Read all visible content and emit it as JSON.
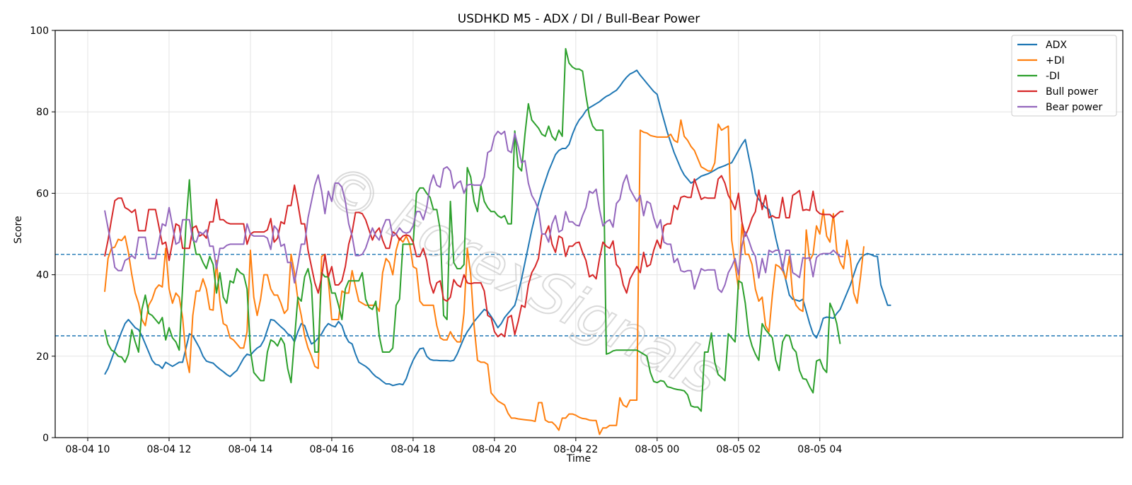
{
  "watermark": "© ForexSignals",
  "chart_data": {
    "type": "line",
    "title": "USDHKD M5 - ADX / DI / Bull-Bear Power",
    "xlabel": "Time",
    "ylabel": "Score",
    "ylim": [
      0,
      100
    ],
    "x_start": "08-04 10:25",
    "x_step_minutes": 5,
    "xticks": [
      "08-04 10",
      "08-04 12",
      "08-04 14",
      "08-04 16",
      "08-04 18",
      "08-04 20",
      "08-04 22",
      "08-05 00",
      "08-05 02",
      "08-05 04"
    ],
    "yticks": [
      "0",
      "20",
      "40",
      "60",
      "80",
      "100"
    ],
    "grid": true,
    "legend_position": "top-right",
    "reference_lines": [
      {
        "y": 45,
        "style": "dashed",
        "color": "#1f77b4"
      },
      {
        "y": 25,
        "style": "dashed",
        "color": "#1f77b4"
      }
    ],
    "series": [
      {
        "name": "ADX",
        "color": "#1f77b4",
        "values": [
          15.5,
          17.0,
          19.2,
          21.5,
          23.8,
          26.0,
          28.0,
          29.0,
          28.0,
          27.0,
          26.5,
          25.0,
          23.0,
          21.0,
          19.0,
          18.0,
          17.8,
          17.0,
          18.5,
          18.0,
          17.5,
          18.0,
          18.5,
          18.5,
          22.0,
          25.5,
          25.0,
          23.5,
          22.0,
          20.0,
          18.8,
          18.5,
          18.3,
          17.5,
          16.8,
          16.2,
          15.5,
          15.0,
          15.8,
          16.5,
          18.0,
          19.5,
          20.5,
          20.2,
          21.2,
          22.0,
          22.5,
          24.0,
          26.5,
          29.0,
          28.8,
          28.0,
          27.2,
          26.5,
          25.5,
          25.0,
          23.5,
          26.0,
          28.0,
          27.5,
          25.0,
          23.0,
          23.5,
          24.5,
          25.5,
          27.0,
          28.0,
          27.5,
          27.2,
          28.5,
          27.5,
          25.0,
          23.5,
          23.0,
          20.5,
          18.5,
          18.0,
          17.5,
          16.8,
          15.8,
          15.0,
          14.5,
          13.8,
          13.2,
          13.2,
          12.8,
          13.0,
          13.2,
          13.0,
          14.5,
          17.0,
          19.0,
          20.5,
          21.8,
          22.0,
          20.0,
          19.2,
          19.0,
          19.0,
          18.9,
          18.9,
          18.9,
          18.8,
          19.0,
          20.5,
          22.5,
          24.5,
          26.0,
          27.2,
          28.5,
          29.5,
          30.5,
          31.5,
          31.0,
          29.8,
          28.5,
          27.0,
          28.0,
          29.5,
          30.5,
          31.5,
          32.5,
          35.5,
          39.0,
          43.0,
          47.0,
          51.0,
          54.5,
          57.5,
          60.5,
          63.0,
          65.5,
          67.5,
          69.5,
          70.5,
          71.0,
          71.0,
          72.0,
          74.5,
          76.5,
          78.0,
          79.0,
          80.3,
          81.0,
          81.5,
          82.0,
          82.5,
          83.2,
          83.8,
          84.2,
          84.8,
          85.3,
          86.3,
          87.5,
          88.5,
          89.3,
          89.7,
          90.2,
          89.0,
          88.0,
          87.0,
          86.0,
          85.0,
          84.3,
          81.0,
          78.0,
          75.0,
          72.5,
          70.0,
          68.0,
          66.0,
          64.5,
          63.5,
          62.5,
          63.0,
          63.6,
          64.2,
          64.5,
          64.8,
          65.2,
          65.7,
          66.2,
          66.5,
          66.8,
          67.2,
          67.5,
          69.0,
          70.5,
          72.0,
          73.2,
          69.0,
          65.0,
          60.0,
          58.5,
          57.5,
          56.5,
          56.0,
          53.0,
          49.0,
          45.5,
          42.0,
          38.5,
          35.0,
          34.0,
          33.8,
          33.5,
          34.0,
          31.0,
          28.0,
          25.5,
          24.5,
          26.5,
          29.3,
          29.6,
          29.5,
          29.3,
          30.5,
          31.5,
          33.5,
          35.5,
          37.5,
          40.0,
          42.5,
          44.0,
          44.8,
          45.2,
          45.0,
          44.6,
          44.5,
          37.5,
          35.0,
          32.5,
          32.5
        ]
      },
      {
        "name": "+DI",
        "color": "#ff7f0e",
        "values": [
          35.8,
          44.0,
          46.5,
          46.8,
          48.7,
          48.4,
          49.5,
          45.5,
          40.0,
          35.5,
          33.0,
          29.0,
          27.5,
          32.5,
          34.0,
          36.5,
          37.5,
          37.0,
          46.5,
          36.5,
          33.0,
          35.5,
          34.5,
          29.5,
          20.0,
          16.0,
          30.0,
          36.0,
          36.0,
          39.0,
          36.5,
          31.5,
          31.3,
          43.5,
          33.5,
          28.0,
          27.5,
          24.5,
          24.0,
          23.0,
          22.0,
          22.0,
          26.0,
          46.0,
          34.5,
          30.0,
          34.0,
          40.0,
          40.0,
          36.5,
          35.0,
          35.0,
          33.0,
          30.5,
          31.5,
          45.0,
          40.5,
          34.0,
          30.0,
          25.0,
          22.0,
          20.0,
          17.5,
          17.0,
          44.5,
          45.0,
          38.5,
          29.0,
          29.0,
          29.0,
          36.0,
          35.5,
          35.5,
          41.0,
          37.0,
          33.5,
          33.0,
          32.5,
          32.5,
          32.5,
          32.5,
          31.0,
          40.5,
          44.0,
          43.0,
          40.0,
          46.0,
          49.0,
          48.0,
          49.5,
          47.5,
          42.0,
          41.5,
          33.5,
          32.5,
          32.5,
          32.5,
          32.5,
          27.5,
          24.5,
          24.0,
          24.0,
          26.0,
          24.5,
          23.5,
          23.5,
          30.5,
          46.5,
          40.0,
          27.5,
          19.0,
          18.5,
          18.5,
          18.0,
          11.0,
          10.0,
          9.0,
          8.5,
          8.0,
          6.0,
          4.8,
          4.8,
          4.6,
          4.5,
          4.4,
          4.3,
          4.2,
          4.0,
          8.6,
          8.6,
          4.3,
          3.8,
          3.8,
          3.0,
          1.8,
          4.8,
          4.8,
          5.8,
          5.8,
          5.5,
          5.0,
          4.7,
          4.6,
          4.3,
          4.2,
          4.2,
          0.8,
          2.4,
          2.4,
          3.0,
          3.0,
          3.0,
          9.8,
          8.0,
          7.5,
          9.2,
          9.2,
          9.2,
          75.5,
          75.0,
          74.8,
          74.2,
          74.0,
          73.8,
          73.8,
          73.8,
          73.8,
          74.5,
          73.0,
          72.5,
          78.0,
          74.0,
          73.0,
          71.5,
          70.5,
          68.5,
          66.5,
          66.0,
          65.5,
          65.5,
          67.5,
          77.0,
          75.5,
          76.0,
          76.5,
          48.5,
          42.5,
          36.5,
          52.5,
          45.0,
          45.0,
          42.5,
          36.5,
          33.5,
          34.5,
          27.5,
          26.0,
          35.0,
          42.5,
          42.0,
          41.0,
          39.0,
          44.5,
          35.0,
          32.5,
          31.5,
          31.0,
          51.0,
          43.5,
          45.0,
          52.0,
          50.0,
          56.0,
          49.5,
          48.0,
          55.0,
          46.0,
          43.0,
          41.5,
          48.5,
          44.0,
          35.5,
          33.0,
          39.5,
          47.0
        ]
      },
      {
        "name": "-DI",
        "color": "#2ca02c",
        "values": [
          26.5,
          23.0,
          21.5,
          21.0,
          20.0,
          19.8,
          18.5,
          20.5,
          26.5,
          23.5,
          21.0,
          31.5,
          35.0,
          30.5,
          30.0,
          29.0,
          28.0,
          29.5,
          24.0,
          27.0,
          24.5,
          23.5,
          21.5,
          37.0,
          52.5,
          63.3,
          49.5,
          45.0,
          45.0,
          43.0,
          41.5,
          44.5,
          42.5,
          35.5,
          40.5,
          34.5,
          33.0,
          38.5,
          38.0,
          41.5,
          40.5,
          40.0,
          36.5,
          21.5,
          16.0,
          15.0,
          14.0,
          14.0,
          21.0,
          24.0,
          23.5,
          22.5,
          24.5,
          23.0,
          17.0,
          13.5,
          24.0,
          34.5,
          33.5,
          39.5,
          41.5,
          37.5,
          21.0,
          21.0,
          40.5,
          39.5,
          39.5,
          35.5,
          35.5,
          32.5,
          29.0,
          36.5,
          38.5,
          38.5,
          38.5,
          38.5,
          40.5,
          34.0,
          32.0,
          31.5,
          33.5,
          25.0,
          21.0,
          21.0,
          21.0,
          22.0,
          32.5,
          34.0,
          47.5,
          47.5,
          47.5,
          47.5,
          60.0,
          61.3,
          61.3,
          60.0,
          59.0,
          56.0,
          56.0,
          51.0,
          30.0,
          29.0,
          58.0,
          43.0,
          41.5,
          41.5,
          42.5,
          66.3,
          64.0,
          58.0,
          55.5,
          62.0,
          58.0,
          56.5,
          55.5,
          55.5,
          54.5,
          54.0,
          54.5,
          52.5,
          52.5,
          75.3,
          66.5,
          65.5,
          74.5,
          82.0,
          78.0,
          77.0,
          76.0,
          74.5,
          74.0,
          76.5,
          74.0,
          73.0,
          75.5,
          74.0,
          95.5,
          92.0,
          91.0,
          90.5,
          90.5,
          90.0,
          84.0,
          79.0,
          76.5,
          75.5,
          75.5,
          75.5,
          20.5,
          20.8,
          21.3,
          21.5,
          21.5,
          21.5,
          21.5,
          21.5,
          21.5,
          21.5,
          21.0,
          20.5,
          20.0,
          16.0,
          13.8,
          13.5,
          14.0,
          13.8,
          12.5,
          12.3,
          12.0,
          11.8,
          11.7,
          11.5,
          10.5,
          7.8,
          7.5,
          7.5,
          6.5,
          21.0,
          21.0,
          25.7,
          18.5,
          15.5,
          14.8,
          14.0,
          25.5,
          24.5,
          23.5,
          38.5,
          38.0,
          33.0,
          25.5,
          22.5,
          20.5,
          19.0,
          28.0,
          26.5,
          25.5,
          24.5,
          19.0,
          16.5,
          23.5,
          25.2,
          25.0,
          22.0,
          21.0,
          16.5,
          14.5,
          14.3,
          12.5,
          11.0,
          18.8,
          19.2,
          17.0,
          16.0,
          33.0,
          31.0,
          28.0,
          23.0
        ]
      },
      {
        "name": "Bull power",
        "color": "#d62728",
        "values": [
          44.5,
          48.5,
          53.5,
          58.2,
          58.8,
          58.8,
          56.5,
          56.0,
          55.3,
          56.0,
          50.8,
          50.8,
          50.8,
          56.0,
          56.0,
          56.0,
          51.8,
          47.5,
          48.0,
          43.5,
          48.0,
          52.5,
          52.0,
          46.5,
          46.5,
          46.5,
          51.5,
          52.0,
          49.5,
          50.0,
          49.0,
          53.0,
          53.0,
          58.5,
          53.5,
          53.5,
          52.8,
          52.5,
          52.5,
          52.5,
          52.5,
          52.5,
          47.5,
          50.0,
          50.5,
          50.5,
          50.5,
          50.5,
          51.0,
          53.8,
          48.0,
          49.0,
          53.0,
          52.5,
          57.0,
          57.0,
          62.0,
          57.5,
          52.5,
          52.5,
          46.0,
          42.0,
          38.0,
          35.5,
          39.5,
          45.0,
          39.5,
          42.0,
          37.5,
          37.5,
          38.5,
          42.0,
          47.5,
          50.5,
          55.3,
          55.3,
          55.0,
          53.5,
          51.0,
          48.5,
          50.5,
          51.5,
          48.5,
          46.5,
          46.5,
          50.5,
          50.0,
          48.5,
          49.5,
          49.8,
          49.5,
          48.0,
          44.5,
          44.5,
          46.5,
          43.5,
          38.0,
          35.5,
          38.0,
          38.5,
          34.0,
          33.5,
          34.5,
          38.8,
          37.5,
          37.0,
          40.0,
          38.0,
          37.8,
          38.0,
          38.0,
          38.0,
          36.0,
          30.0,
          29.5,
          26.0,
          24.8,
          25.5,
          24.8,
          29.5,
          30.0,
          25.3,
          28.5,
          32.5,
          32.0,
          37.5,
          40.5,
          42.0,
          44.0,
          50.0,
          50.0,
          52.0,
          47.5,
          45.5,
          49.5,
          49.0,
          44.5,
          47.0,
          47.0,
          47.8,
          48.0,
          45.5,
          43.5,
          39.5,
          40.0,
          39.0,
          44.0,
          48.0,
          47.0,
          46.5,
          48.3,
          42.5,
          41.5,
          37.5,
          35.5,
          39.0,
          40.5,
          42.0,
          40.5,
          45.5,
          42.0,
          42.5,
          46.0,
          48.5,
          46.5,
          52.0,
          52.5,
          52.5,
          57.0,
          56.0,
          59.0,
          59.3,
          59.0,
          59.0,
          63.5,
          61.0,
          58.5,
          59.0,
          58.8,
          58.8,
          58.8,
          63.5,
          64.3,
          62.5,
          59.5,
          58.0,
          56.0,
          60.0,
          53.0,
          49.5,
          51.5,
          54.0,
          55.5,
          60.8,
          56.0,
          59.5,
          54.0,
          54.5,
          54.0,
          54.0,
          59.0,
          54.0,
          54.0,
          59.5,
          60.0,
          60.7,
          55.8,
          56.0,
          55.8,
          60.5,
          55.8,
          55.0,
          54.8,
          54.8,
          54.8,
          54.0,
          54.8,
          55.5,
          55.5
        ]
      },
      {
        "name": "Bear power",
        "color": "#9467bd",
        "values": [
          55.8,
          51.5,
          47.0,
          41.8,
          41.0,
          41.0,
          43.5,
          44.0,
          44.7,
          44.0,
          49.2,
          49.2,
          49.2,
          44.0,
          44.0,
          44.0,
          48.2,
          52.5,
          52.0,
          56.5,
          52.0,
          47.5,
          48.0,
          53.5,
          53.5,
          53.5,
          48.5,
          48.0,
          50.5,
          50.0,
          51.0,
          47.0,
          47.0,
          41.5,
          46.5,
          46.5,
          47.2,
          47.5,
          47.5,
          47.5,
          47.5,
          47.5,
          52.5,
          50.0,
          49.5,
          49.5,
          49.5,
          49.5,
          49.0,
          46.2,
          52.0,
          51.0,
          47.0,
          47.5,
          43.0,
          43.0,
          38.0,
          42.5,
          47.5,
          47.5,
          54.0,
          58.0,
          62.0,
          64.5,
          60.5,
          55.0,
          60.5,
          58.0,
          62.5,
          62.5,
          61.5,
          58.0,
          52.5,
          49.5,
          44.7,
          44.7,
          45.0,
          46.5,
          49.0,
          51.5,
          49.5,
          48.5,
          51.5,
          53.5,
          53.5,
          49.5,
          50.0,
          51.5,
          50.5,
          50.2,
          50.5,
          52.0,
          55.5,
          55.5,
          53.5,
          56.5,
          62.0,
          64.5,
          62.0,
          61.5,
          66.0,
          66.5,
          65.5,
          61.2,
          62.5,
          63.0,
          60.0,
          62.0,
          62.2,
          62.0,
          62.0,
          62.0,
          64.0,
          70.0,
          70.5,
          74.0,
          75.2,
          74.5,
          75.2,
          70.5,
          70.0,
          74.7,
          71.5,
          67.5,
          68.0,
          62.5,
          59.5,
          58.0,
          56.0,
          50.0,
          50.0,
          48.0,
          52.5,
          54.5,
          50.5,
          51.0,
          55.5,
          53.0,
          53.0,
          52.2,
          52.0,
          54.5,
          56.5,
          60.5,
          60.0,
          61.0,
          56.0,
          52.0,
          53.0,
          53.5,
          51.7,
          57.5,
          58.5,
          62.5,
          64.5,
          61.0,
          59.5,
          58.0,
          59.5,
          54.5,
          58.0,
          57.5,
          54.0,
          51.5,
          53.5,
          48.0,
          47.5,
          47.5,
          43.0,
          44.0,
          41.0,
          40.7,
          41.0,
          41.0,
          36.5,
          39.0,
          41.5,
          41.0,
          41.2,
          41.2,
          41.2,
          36.5,
          35.7,
          37.5,
          40.5,
          42.0,
          44.0,
          40.0,
          47.0,
          50.5,
          48.5,
          46.0,
          44.5,
          39.2,
          44.0,
          40.5,
          46.0,
          45.5,
          46.0,
          46.0,
          41.0,
          46.0,
          46.0,
          40.5,
          40.0,
          39.3,
          44.2,
          44.0,
          44.2,
          39.5,
          44.2,
          45.0,
          45.2,
          45.2,
          45.2,
          46.0,
          45.2,
          44.5,
          44.5
        ]
      }
    ]
  }
}
